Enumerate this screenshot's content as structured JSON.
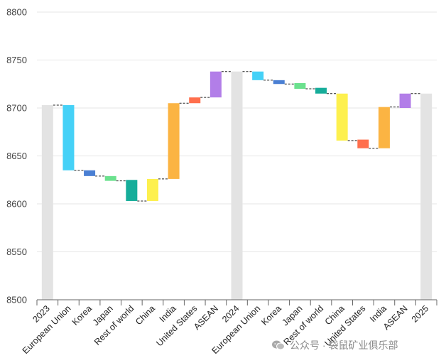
{
  "chart_data": {
    "type": "waterfall",
    "y_axis": {
      "ylim": [
        8500,
        8800
      ],
      "ticks": [
        8500,
        8550,
        8600,
        8650,
        8700,
        8750,
        8800
      ]
    },
    "colors": {
      "total": "#e3e3e3",
      "European Union": "#45d1f7",
      "Korea": "#4a7fd3",
      "Japan": "#6be18e",
      "Rest of world": "#16ad9a",
      "China": "#fdf04e",
      "India": "#fbb443",
      "United States": "#ff6f4d",
      "ASEAN": "#b27ee8"
    },
    "bars": [
      {
        "label": "2023",
        "kind": "total",
        "value": 8703
      },
      {
        "label": "European Union",
        "kind": "delta",
        "start": 8703,
        "end": 8635
      },
      {
        "label": "Korea",
        "kind": "delta",
        "start": 8635,
        "end": 8629
      },
      {
        "label": "Japan",
        "kind": "delta",
        "start": 8629,
        "end": 8624
      },
      {
        "label": "Rest of world",
        "kind": "delta",
        "start": 8625,
        "end": 8603
      },
      {
        "label": "China",
        "kind": "delta",
        "start": 8603,
        "end": 8626
      },
      {
        "label": "India",
        "kind": "delta",
        "start": 8626,
        "end": 8705
      },
      {
        "label": "United States",
        "kind": "delta",
        "start": 8705,
        "end": 8711
      },
      {
        "label": "ASEAN",
        "kind": "delta",
        "start": 8711,
        "end": 8738
      },
      {
        "label": "2024",
        "kind": "total",
        "value": 8738
      },
      {
        "label": "European Union",
        "kind": "delta",
        "start": 8738,
        "end": 8729
      },
      {
        "label": "Korea",
        "kind": "delta",
        "start": 8729,
        "end": 8725
      },
      {
        "label": "Japan",
        "kind": "delta",
        "start": 8726,
        "end": 8720
      },
      {
        "label": "Rest of world",
        "kind": "delta",
        "start": 8721,
        "end": 8715
      },
      {
        "label": "China",
        "kind": "delta",
        "start": 8715,
        "end": 8666
      },
      {
        "label": "United States",
        "kind": "delta",
        "start": 8667,
        "end": 8658
      },
      {
        "label": "India",
        "kind": "delta",
        "start": 8658,
        "end": 8701
      },
      {
        "label": "ASEAN",
        "kind": "delta",
        "start": 8700,
        "end": 8715
      },
      {
        "label": "2025",
        "kind": "total",
        "value": 8715
      }
    ]
  },
  "watermark": {
    "icon": "wechat-icon",
    "text": "公众号 · 袋鼠矿业俱乐部"
  }
}
